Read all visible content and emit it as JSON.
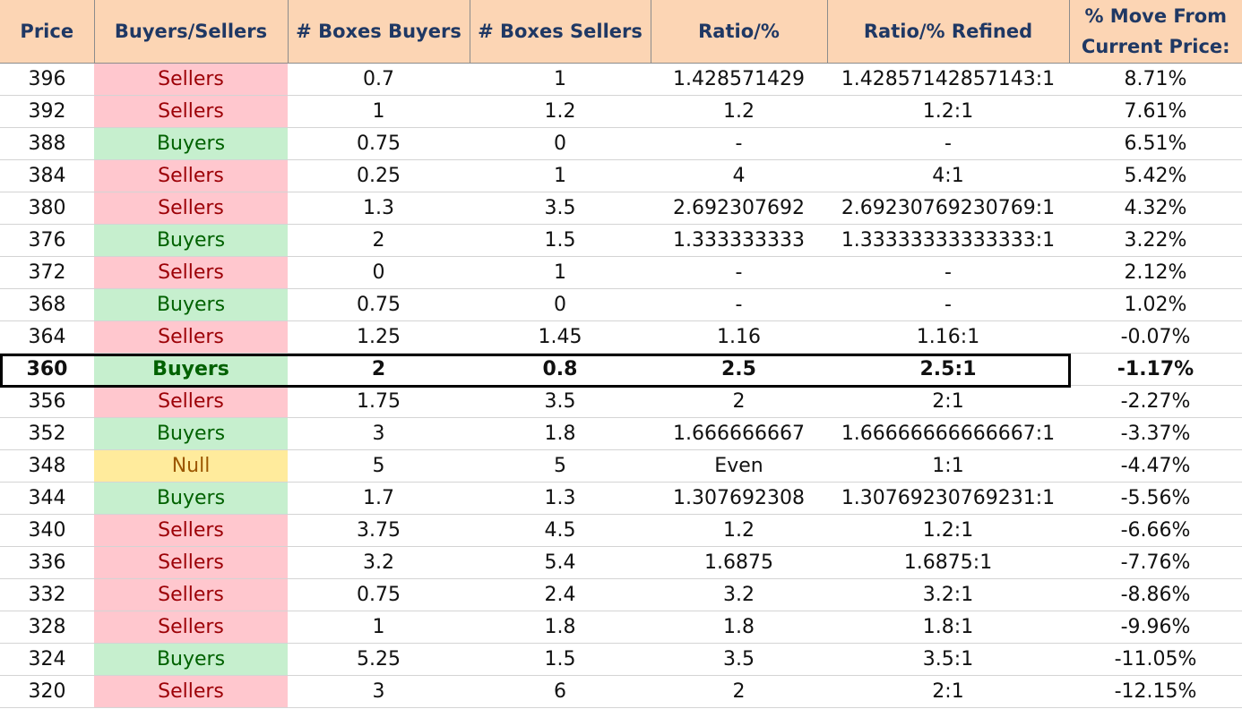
{
  "headers": {
    "price": "Price",
    "side": "Buyers/Sellers",
    "boxes_buyers": "# Boxes Buyers",
    "boxes_sellers": "# Boxes Sellers",
    "ratio": "Ratio/%",
    "ratio_refined": "Ratio/% Refined",
    "move_line1": "% Move From",
    "move_line2": "Current Price:"
  },
  "colors": {
    "header_bg": "#fcd5b4",
    "header_text": "#1f3864",
    "sellers_bg": "#ffc7ce",
    "sellers_text": "#9c0006",
    "buyers_bg": "#c6efce",
    "buyers_text": "#006100",
    "null_bg": "#ffeb9c",
    "null_text": "#9c5700"
  },
  "current_price_row": "360",
  "rows": [
    {
      "price": "396",
      "side": "Sellers",
      "boxes_buyers": "0.7",
      "boxes_sellers": "1",
      "ratio": "1.428571429",
      "ratio_refined": "1.42857142857143:1",
      "move": "8.71%"
    },
    {
      "price": "392",
      "side": "Sellers",
      "boxes_buyers": "1",
      "boxes_sellers": "1.2",
      "ratio": "1.2",
      "ratio_refined": "1.2:1",
      "move": "7.61%"
    },
    {
      "price": "388",
      "side": "Buyers",
      "boxes_buyers": "0.75",
      "boxes_sellers": "0",
      "ratio": "-",
      "ratio_refined": "-",
      "move": "6.51%"
    },
    {
      "price": "384",
      "side": "Sellers",
      "boxes_buyers": "0.25",
      "boxes_sellers": "1",
      "ratio": "4",
      "ratio_refined": "4:1",
      "move": "5.42%"
    },
    {
      "price": "380",
      "side": "Sellers",
      "boxes_buyers": "1.3",
      "boxes_sellers": "3.5",
      "ratio": "2.692307692",
      "ratio_refined": "2.69230769230769:1",
      "move": "4.32%"
    },
    {
      "price": "376",
      "side": "Buyers",
      "boxes_buyers": "2",
      "boxes_sellers": "1.5",
      "ratio": "1.333333333",
      "ratio_refined": "1.33333333333333:1",
      "move": "3.22%"
    },
    {
      "price": "372",
      "side": "Sellers",
      "boxes_buyers": "0",
      "boxes_sellers": "1",
      "ratio": "-",
      "ratio_refined": "-",
      "move": "2.12%"
    },
    {
      "price": "368",
      "side": "Buyers",
      "boxes_buyers": "0.75",
      "boxes_sellers": "0",
      "ratio": "-",
      "ratio_refined": "-",
      "move": "1.02%"
    },
    {
      "price": "364",
      "side": "Sellers",
      "boxes_buyers": "1.25",
      "boxes_sellers": "1.45",
      "ratio": "1.16",
      "ratio_refined": "1.16:1",
      "move": "-0.07%"
    },
    {
      "price": "360",
      "side": "Buyers",
      "boxes_buyers": "2",
      "boxes_sellers": "0.8",
      "ratio": "2.5",
      "ratio_refined": "2.5:1",
      "move": "-1.17%"
    },
    {
      "price": "356",
      "side": "Sellers",
      "boxes_buyers": "1.75",
      "boxes_sellers": "3.5",
      "ratio": "2",
      "ratio_refined": "2:1",
      "move": "-2.27%"
    },
    {
      "price": "352",
      "side": "Buyers",
      "boxes_buyers": "3",
      "boxes_sellers": "1.8",
      "ratio": "1.666666667",
      "ratio_refined": "1.66666666666667:1",
      "move": "-3.37%"
    },
    {
      "price": "348",
      "side": "Null",
      "boxes_buyers": "5",
      "boxes_sellers": "5",
      "ratio": "Even",
      "ratio_refined": "1:1",
      "move": "-4.47%"
    },
    {
      "price": "344",
      "side": "Buyers",
      "boxes_buyers": "1.7",
      "boxes_sellers": "1.3",
      "ratio": "1.307692308",
      "ratio_refined": "1.30769230769231:1",
      "move": "-5.56%"
    },
    {
      "price": "340",
      "side": "Sellers",
      "boxes_buyers": "3.75",
      "boxes_sellers": "4.5",
      "ratio": "1.2",
      "ratio_refined": "1.2:1",
      "move": "-6.66%"
    },
    {
      "price": "336",
      "side": "Sellers",
      "boxes_buyers": "3.2",
      "boxes_sellers": "5.4",
      "ratio": "1.6875",
      "ratio_refined": "1.6875:1",
      "move": "-7.76%"
    },
    {
      "price": "332",
      "side": "Sellers",
      "boxes_buyers": "0.75",
      "boxes_sellers": "2.4",
      "ratio": "3.2",
      "ratio_refined": "3.2:1",
      "move": "-8.86%"
    },
    {
      "price": "328",
      "side": "Sellers",
      "boxes_buyers": "1",
      "boxes_sellers": "1.8",
      "ratio": "1.8",
      "ratio_refined": "1.8:1",
      "move": "-9.96%"
    },
    {
      "price": "324",
      "side": "Buyers",
      "boxes_buyers": "5.25",
      "boxes_sellers": "1.5",
      "ratio": "3.5",
      "ratio_refined": "3.5:1",
      "move": "-11.05%"
    },
    {
      "price": "320",
      "side": "Sellers",
      "boxes_buyers": "3",
      "boxes_sellers": "6",
      "ratio": "2",
      "ratio_refined": "2:1",
      "move": "-12.15%"
    }
  ]
}
